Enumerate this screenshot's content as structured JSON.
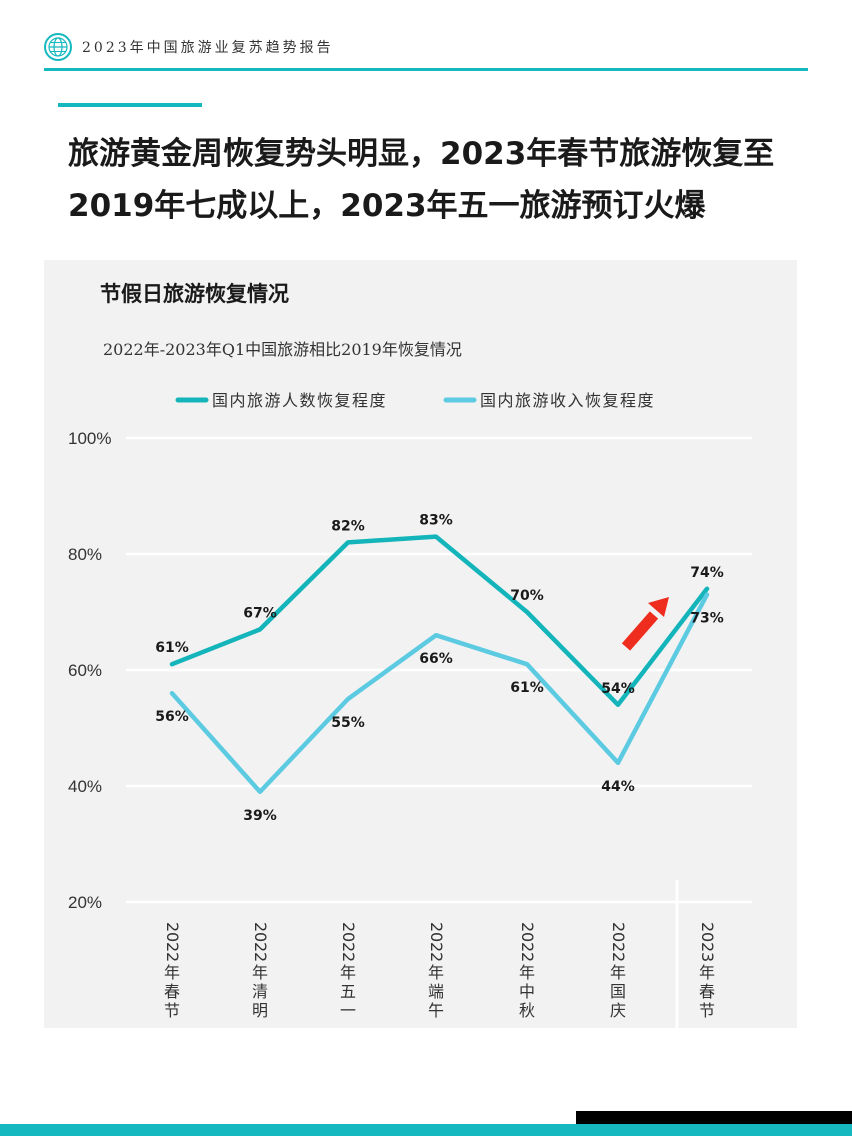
{
  "header": {
    "title": "2023年中国旅游业复苏趋势报告"
  },
  "headline": {
    "line1": "旅游黄金周恢复势头明显，2023年春节旅游恢复至",
    "line2": "2019年七成以上，2023年五一旅游预订火爆"
  },
  "panel": {
    "title": "节假日旅游恢复情况"
  },
  "colors": {
    "accent": "#16b8c0",
    "series1": "#13b5bb",
    "series2": "#5ccbe2",
    "arrow": "#ef2d1e",
    "panel_bg": "#f2f2f2"
  },
  "chart_data": {
    "type": "line",
    "title": "2022年-2023年Q1中国旅游相比2019年恢复情况",
    "categories": [
      "2022年春节",
      "2022年清明",
      "2022年五一",
      "2022年端午",
      "2022年中秋",
      "2022年国庆",
      "2023年春节"
    ],
    "series": [
      {
        "name": "国内旅游人数恢复程度",
        "values": [
          61,
          67,
          82,
          83,
          70,
          54,
          74
        ],
        "labels": [
          "61%",
          "67%",
          "82%",
          "83%",
          "70%",
          "54%",
          "74%"
        ]
      },
      {
        "name": "国内旅游收入恢复程度",
        "values": [
          56,
          39,
          55,
          66,
          61,
          44,
          73
        ],
        "labels": [
          "56%",
          "39%",
          "55%",
          "66%",
          "61%",
          "44%",
          "73%"
        ]
      }
    ],
    "y_ticks": [
      "20%",
      "40%",
      "60%",
      "80%",
      "100%"
    ],
    "ylim": [
      20,
      100
    ],
    "grid": true,
    "legend": "top",
    "annotation": "red upward arrow near 2022年国庆 → 2023年春节"
  }
}
